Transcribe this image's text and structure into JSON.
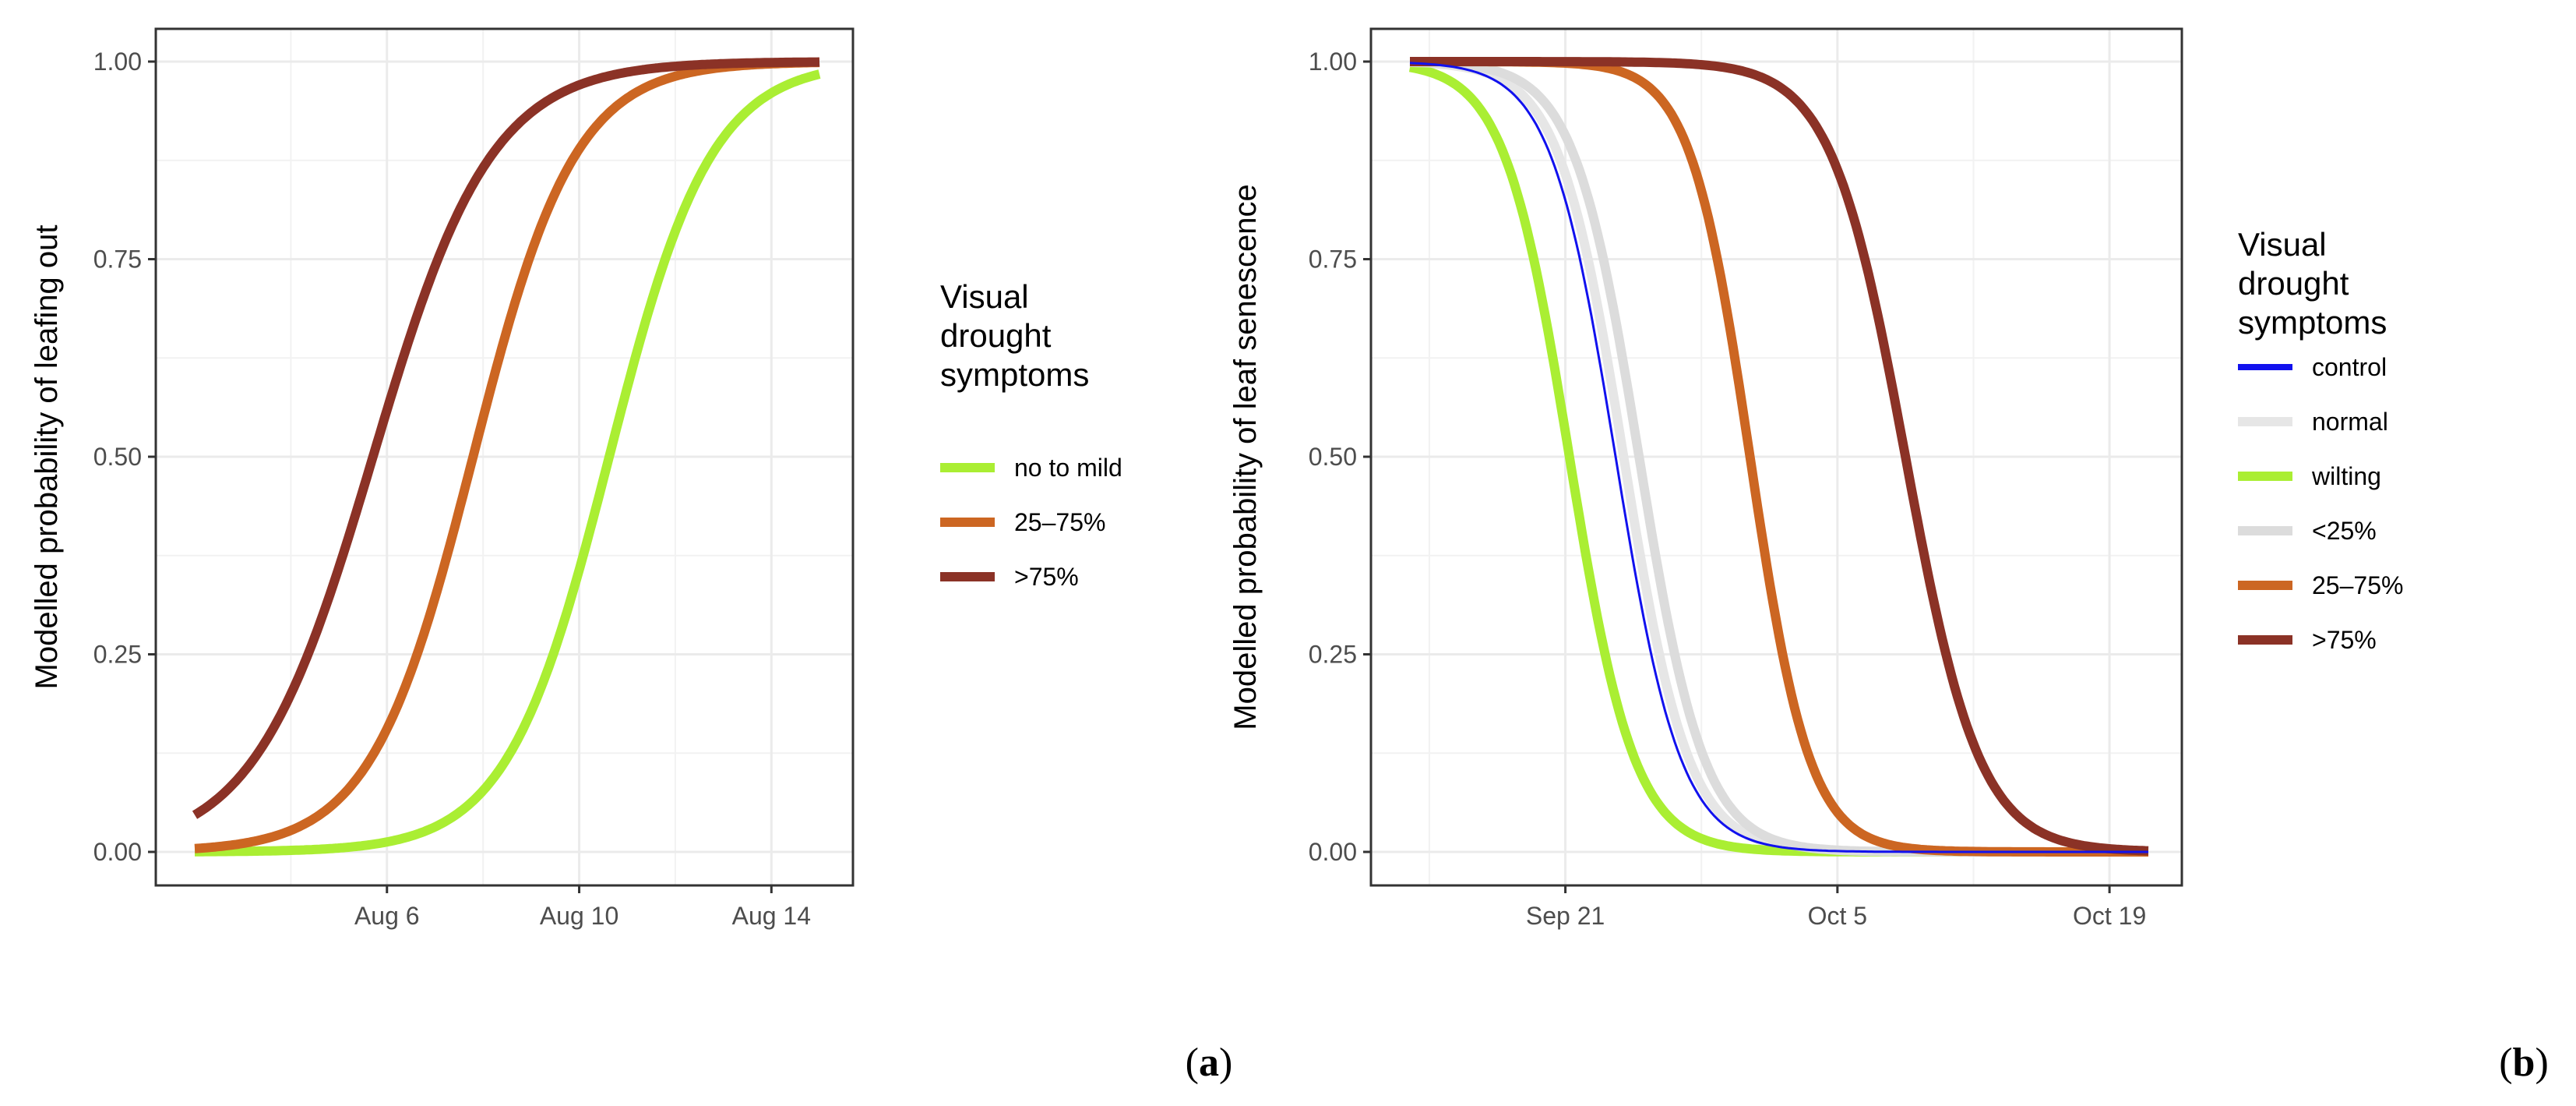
{
  "chart_data": [
    {
      "type": "line",
      "panel_label": {
        "open": "(",
        "letter": "a",
        "close": ")"
      },
      "ylabel": "Modelled probability of leafing out",
      "xlabel": "",
      "x_ticks": [
        "Aug 6",
        "Aug 10",
        "Aug 14"
      ],
      "x_tick_dates": [
        "2000-08-06",
        "2000-08-10",
        "2000-08-14"
      ],
      "xlim": [
        "2000-08-02",
        "2000-08-15"
      ],
      "x_range": [
        "2000-08-02",
        "2000-08-15"
      ],
      "y_ticks": [
        "0.00",
        "0.25",
        "0.50",
        "0.75",
        "1.00"
      ],
      "ylim": [
        0,
        1
      ],
      "grid": true,
      "legend": {
        "title_lines": [
          "Visual",
          "drought",
          "symptoms"
        ],
        "position": "right",
        "entries": [
          "no to mild",
          "25–75%",
          ">75%"
        ]
      },
      "series": [
        {
          "name": "no to mild",
          "color": "#aaee33",
          "midpoint": "2000-08-10 15:00",
          "scale_days": 1.06
        },
        {
          "name": "25–75%",
          "color": "#cc6622",
          "midpoint": "2000-08-07 19:00",
          "scale_days": 1.06
        },
        {
          "name": ">75%",
          "color": "#8b3226",
          "midpoint": "2000-08-05 17:00",
          "scale_days": 1.23
        }
      ]
    },
    {
      "type": "line",
      "panel_label": {
        "open": "(",
        "letter": "b",
        "close": ")"
      },
      "ylabel": "Modelled probability of leaf senescence",
      "xlabel": "",
      "x_ticks": [
        "Sep 21",
        "Oct 5",
        "Oct 19"
      ],
      "x_tick_dates": [
        "2000-09-21",
        "2000-10-05",
        "2000-10-19"
      ],
      "xlim": [
        "2000-09-13",
        "2000-10-21"
      ],
      "x_range": [
        "2000-09-13",
        "2000-10-21"
      ],
      "y_ticks": [
        "0.00",
        "0.25",
        "0.50",
        "0.75",
        "1.00"
      ],
      "ylim": [
        0,
        1
      ],
      "grid": true,
      "legend": {
        "title_lines": [
          "Visual",
          "drought",
          "symptoms"
        ],
        "position": "right",
        "entries": [
          "control",
          "normal",
          "wilting",
          "<25%",
          "25–75%",
          ">75%"
        ]
      },
      "series": [
        {
          "name": "control",
          "color": "#1111ee",
          "midpoint": "2000-09-23 14:00",
          "scale_days": 1.67,
          "width": "thin"
        },
        {
          "name": "normal",
          "color": "#e6e6e6",
          "midpoint": "2000-09-24 00:00",
          "scale_days": 1.67
        },
        {
          "name": "wilting",
          "color": "#aaee33",
          "midpoint": "2000-09-21 05:00",
          "scale_days": 1.67
        },
        {
          "name": "<25%",
          "color": "#dcdcdc",
          "midpoint": "2000-09-24 19:00",
          "scale_days": 1.67
        },
        {
          "name": "25–75%",
          "color": "#cc6622",
          "midpoint": "2000-09-30 12:00",
          "scale_days": 1.53
        },
        {
          "name": ">75%",
          "color": "#8b3226",
          "midpoint": "2000-10-08 12:00",
          "scale_days": 1.9
        }
      ]
    }
  ]
}
